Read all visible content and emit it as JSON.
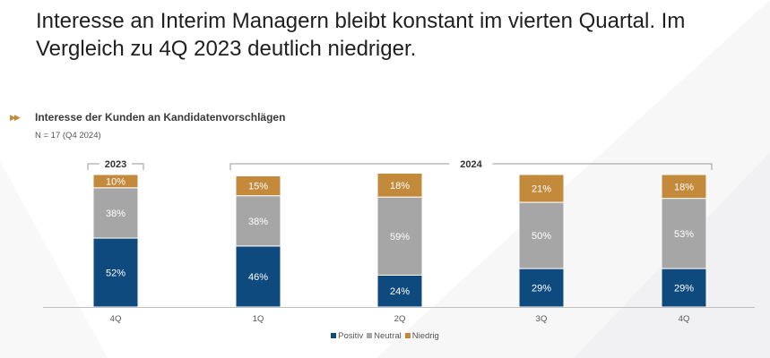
{
  "title": "Interesse an Interim Managern bleibt konstant im vierten Quartal. Im Vergleich zu 4Q 2023 deutlich niedriger.",
  "subtitle": "Interesse der Kunden an Kandidatenvorschlägen",
  "subtitle_icon": "double-chevron-right-icon",
  "note": "N = 17 (Q4 2024)",
  "colors": {
    "positiv": "#0e4a7d",
    "neutral": "#a6a6a6",
    "niedrig": "#c48a3c"
  },
  "chart_data": {
    "type": "bar",
    "stacked": true,
    "categories": [
      "4Q",
      "1Q",
      "2Q",
      "3Q",
      "4Q"
    ],
    "groups": [
      {
        "label": "2023",
        "from": 0,
        "to": 0
      },
      {
        "label": "2024",
        "from": 1,
        "to": 4
      }
    ],
    "series": [
      {
        "name": "Positiv",
        "key": "positiv",
        "values": [
          52,
          46,
          24,
          29,
          29
        ]
      },
      {
        "name": "Neutral",
        "key": "neutral",
        "values": [
          38,
          38,
          59,
          50,
          53
        ]
      },
      {
        "name": "Niedrig",
        "key": "niedrig",
        "values": [
          10,
          15,
          18,
          21,
          18
        ]
      }
    ],
    "value_suffix": "%",
    "ylim": [
      0,
      100
    ]
  }
}
